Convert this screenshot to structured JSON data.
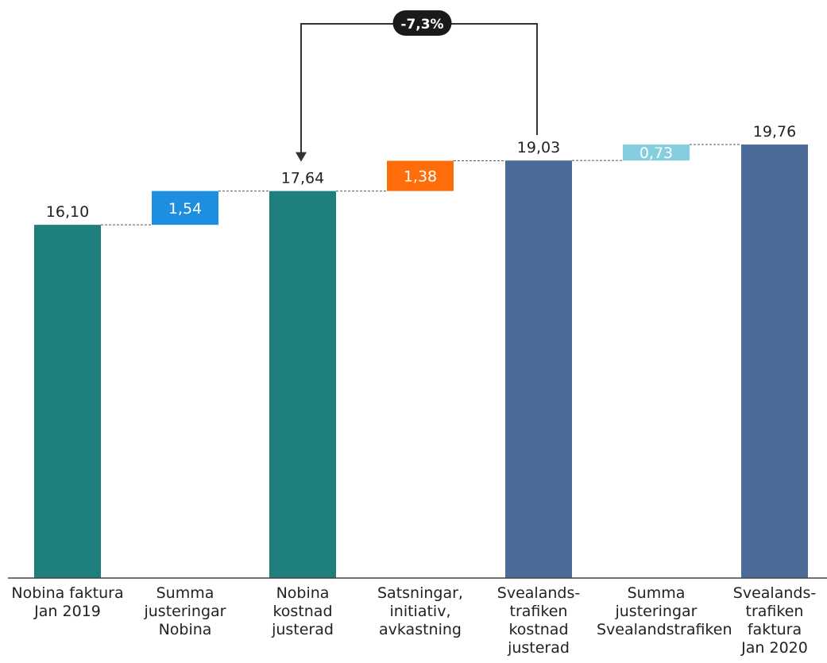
{
  "chart_data": {
    "type": "bar",
    "subtype": "waterfall",
    "categories": [
      "Nobina faktura\nJan 2019",
      "Summa\njusteringar\nNobina",
      "Nobina\nkostnad\njusterad",
      "Satsningar,\ninitiativ,\navkastning",
      "Svealands-\ntrafiken\nkostnad\njusterad",
      "Summa\njusteringar\nSvealandstrafiken",
      "Svealands-\ntrafiken\nfaktura\nJan 2020"
    ],
    "bars": [
      {
        "kind": "total",
        "base": 0,
        "value": 16.1,
        "label": "16,10",
        "color": "#1f7f7c"
      },
      {
        "kind": "delta",
        "base": 16.1,
        "value": 1.54,
        "label": "1,54",
        "color": "#1e8fe0"
      },
      {
        "kind": "total",
        "base": 0,
        "value": 17.64,
        "label": "17,64",
        "color": "#1f7f7c"
      },
      {
        "kind": "delta",
        "base": 17.64,
        "value": 1.38,
        "label": "1,38",
        "color": "#ff6d0a"
      },
      {
        "kind": "total",
        "base": 0,
        "value": 19.03,
        "label": "19,03",
        "color": "#4b6b98"
      },
      {
        "kind": "delta",
        "base": 19.03,
        "value": 0.73,
        "label": "0,73",
        "color": "#86cde0"
      },
      {
        "kind": "total",
        "base": 0,
        "value": 19.76,
        "label": "19,76",
        "color": "#4b6b98"
      }
    ],
    "annotation": {
      "text": "-7,3%",
      "from": 4,
      "to": 2
    },
    "ylim": [
      0,
      21.5
    ],
    "title": "",
    "xlabel": "",
    "ylabel": "",
    "grid": false
  }
}
